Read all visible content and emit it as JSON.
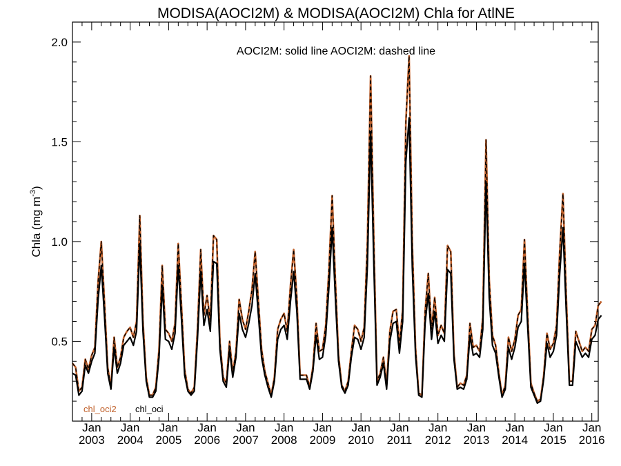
{
  "chart_data": {
    "type": "line",
    "title": "MODISA(AOCI2M) & MODISA(AOCI2M)  Chla for AtlNE",
    "ylabel": "Chla (mg m",
    "ylabel_sup": "-3",
    "ylabel_close": ")",
    "annotation": "AOCI2M: solid line   AOCI2M: dashed line",
    "ylim": [
      0.1,
      2.1
    ],
    "y_ticks": [
      0.5,
      1.0,
      1.5,
      2.0
    ],
    "y_tick_labels": [
      "0.5",
      "1.0",
      "1.5",
      "2.0"
    ],
    "x_start": "2002-07",
    "x_end": "2016-03",
    "x_ticks": [
      {
        "month": "Jan",
        "year": "2003",
        "date": "2003-01"
      },
      {
        "month": "Jan",
        "year": "2004",
        "date": "2004-01"
      },
      {
        "month": "Jan",
        "year": "2005",
        "date": "2005-01"
      },
      {
        "month": "Jan",
        "year": "2006",
        "date": "2006-01"
      },
      {
        "month": "Jan",
        "year": "2007",
        "date": "2007-01"
      },
      {
        "month": "Jan",
        "year": "2008",
        "date": "2008-01"
      },
      {
        "month": "Jan",
        "year": "2009",
        "date": "2009-01"
      },
      {
        "month": "Jan",
        "year": "2010",
        "date": "2010-01"
      },
      {
        "month": "Jan",
        "year": "2011",
        "date": "2011-01"
      },
      {
        "month": "Jan",
        "year": "2012",
        "date": "2012-01"
      },
      {
        "month": "Jan",
        "year": "2013",
        "date": "2013-01"
      },
      {
        "month": "Jan",
        "year": "2014",
        "date": "2014-01"
      },
      {
        "month": "Jan",
        "year": "2015",
        "date": "2015-01"
      },
      {
        "month": "Jan",
        "year": "2016",
        "date": "2016-01"
      }
    ],
    "legend": [
      {
        "label": "chl_oci2",
        "color": "#c0602a"
      },
      {
        "label": "chl_oci",
        "color": "#000000"
      }
    ],
    "series": [
      {
        "name": "chl_oci2",
        "color": "#c0602a",
        "style": "solid",
        "start": "2002-07",
        "values": [
          0.39,
          0.37,
          0.25,
          0.27,
          0.41,
          0.36,
          0.43,
          0.47,
          0.8,
          1.0,
          0.69,
          0.37,
          0.27,
          0.52,
          0.37,
          0.42,
          0.52,
          0.55,
          0.57,
          0.52,
          0.6,
          1.13,
          0.6,
          0.32,
          0.23,
          0.23,
          0.27,
          0.46,
          0.88,
          0.56,
          0.54,
          0.5,
          0.59,
          0.99,
          0.68,
          0.36,
          0.26,
          0.24,
          0.27,
          0.56,
          0.96,
          0.63,
          0.73,
          0.6,
          1.03,
          1.01,
          0.5,
          0.32,
          0.29,
          0.5,
          0.34,
          0.45,
          0.71,
          0.61,
          0.56,
          0.65,
          0.76,
          0.95,
          0.7,
          0.46,
          0.35,
          0.29,
          0.23,
          0.32,
          0.56,
          0.61,
          0.64,
          0.55,
          0.78,
          0.96,
          0.72,
          0.33,
          0.33,
          0.33,
          0.27,
          0.37,
          0.59,
          0.45,
          0.46,
          0.58,
          0.86,
          1.23,
          0.81,
          0.43,
          0.28,
          0.25,
          0.3,
          0.45,
          0.58,
          0.56,
          0.5,
          0.57,
          1.0,
          1.83,
          1.0,
          0.3,
          0.34,
          0.42,
          0.28,
          0.55,
          0.65,
          0.66,
          0.48,
          0.66,
          1.6,
          1.93,
          0.99,
          0.47,
          0.24,
          0.23,
          0.65,
          0.84,
          0.56,
          0.72,
          0.53,
          0.58,
          0.54,
          0.98,
          0.95,
          0.44,
          0.27,
          0.29,
          0.28,
          0.33,
          0.59,
          0.47,
          0.48,
          0.45,
          0.62,
          1.51,
          0.81,
          0.53,
          0.48,
          0.34,
          0.23,
          0.28,
          0.52,
          0.45,
          0.51,
          0.63,
          0.66,
          1.01,
          0.63,
          0.29,
          0.24,
          0.2,
          0.21,
          0.33,
          0.54,
          0.46,
          0.49,
          0.58,
          0.95,
          1.24,
          0.74,
          0.3,
          0.3,
          0.55,
          0.5,
          0.45,
          0.47,
          0.45,
          0.56,
          0.58,
          0.68,
          0.7
        ]
      },
      {
        "name": "chl_oci",
        "color": "#000000",
        "style": "solid",
        "start": "2002-07",
        "values": [
          0.34,
          0.33,
          0.23,
          0.25,
          0.38,
          0.34,
          0.4,
          0.44,
          0.71,
          0.88,
          0.62,
          0.34,
          0.26,
          0.47,
          0.34,
          0.39,
          0.48,
          0.5,
          0.52,
          0.48,
          0.55,
          0.99,
          0.55,
          0.3,
          0.22,
          0.22,
          0.25,
          0.42,
          0.78,
          0.51,
          0.5,
          0.46,
          0.54,
          0.88,
          0.61,
          0.33,
          0.25,
          0.23,
          0.25,
          0.51,
          0.85,
          0.58,
          0.66,
          0.55,
          0.9,
          0.89,
          0.46,
          0.3,
          0.27,
          0.46,
          0.32,
          0.42,
          0.64,
          0.56,
          0.52,
          0.59,
          0.68,
          0.84,
          0.63,
          0.42,
          0.33,
          0.27,
          0.22,
          0.3,
          0.51,
          0.56,
          0.58,
          0.51,
          0.7,
          0.85,
          0.65,
          0.31,
          0.31,
          0.31,
          0.26,
          0.35,
          0.53,
          0.41,
          0.42,
          0.53,
          0.77,
          1.07,
          0.72,
          0.4,
          0.27,
          0.24,
          0.28,
          0.42,
          0.52,
          0.51,
          0.46,
          0.52,
          0.88,
          1.55,
          0.88,
          0.28,
          0.32,
          0.39,
          0.26,
          0.5,
          0.59,
          0.6,
          0.44,
          0.6,
          1.4,
          1.62,
          0.87,
          0.43,
          0.23,
          0.22,
          0.59,
          0.74,
          0.51,
          0.65,
          0.49,
          0.53,
          0.5,
          0.86,
          0.84,
          0.41,
          0.26,
          0.27,
          0.26,
          0.31,
          0.53,
          0.43,
          0.44,
          0.42,
          0.56,
          1.3,
          0.72,
          0.48,
          0.44,
          0.32,
          0.22,
          0.26,
          0.47,
          0.41,
          0.47,
          0.57,
          0.6,
          0.89,
          0.57,
          0.27,
          0.23,
          0.19,
          0.2,
          0.31,
          0.49,
          0.42,
          0.45,
          0.53,
          0.84,
          1.07,
          0.66,
          0.28,
          0.28,
          0.5,
          0.46,
          0.42,
          0.44,
          0.42,
          0.51,
          0.53,
          0.61,
          0.63
        ]
      }
    ]
  }
}
